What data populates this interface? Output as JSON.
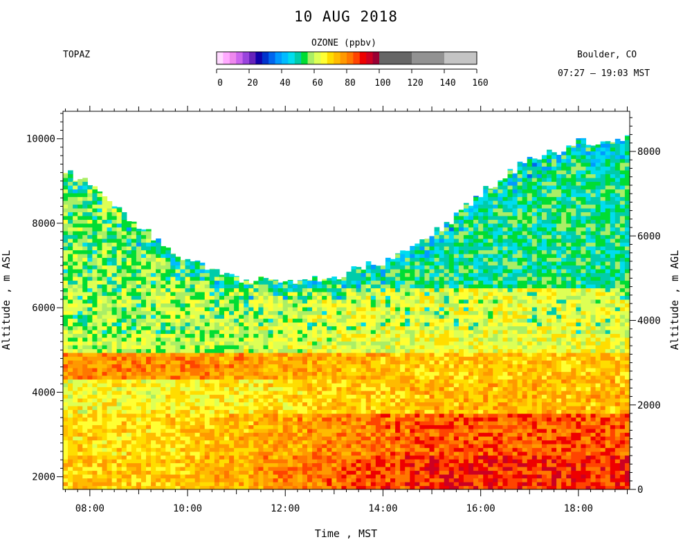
{
  "header": {
    "title": "10 AUG 2018",
    "site": "TOPAZ",
    "location": "Boulder, CO",
    "time_range": "07:27 – 19:03 MST"
  },
  "colorbar": {
    "label": "OZONE (ppbv)",
    "ticks": [
      0,
      20,
      40,
      60,
      80,
      100,
      120,
      140,
      160
    ],
    "bins": [
      {
        "lo": 0,
        "hi": 4,
        "color": "#ffd9ff"
      },
      {
        "lo": 4,
        "hi": 8,
        "color": "#ffaaff"
      },
      {
        "lo": 8,
        "hi": 12,
        "color": "#ee88ee"
      },
      {
        "lo": 12,
        "hi": 16,
        "color": "#cc66ee"
      },
      {
        "lo": 16,
        "hi": 20,
        "color": "#9944dd"
      },
      {
        "lo": 20,
        "hi": 24,
        "color": "#6622bb"
      },
      {
        "lo": 24,
        "hi": 28,
        "color": "#1100aa"
      },
      {
        "lo": 28,
        "hi": 32,
        "color": "#0033cc"
      },
      {
        "lo": 32,
        "hi": 36,
        "color": "#0066ee"
      },
      {
        "lo": 36,
        "hi": 40,
        "color": "#0099ff"
      },
      {
        "lo": 40,
        "hi": 44,
        "color": "#00bbff"
      },
      {
        "lo": 44,
        "hi": 48,
        "color": "#00ddee"
      },
      {
        "lo": 48,
        "hi": 52,
        "color": "#00ccaa"
      },
      {
        "lo": 52,
        "hi": 56,
        "color": "#00dd33"
      },
      {
        "lo": 56,
        "hi": 60,
        "color": "#aaee66"
      },
      {
        "lo": 60,
        "hi": 64,
        "color": "#ddff55"
      },
      {
        "lo": 64,
        "hi": 68,
        "color": "#ffff33"
      },
      {
        "lo": 68,
        "hi": 72,
        "color": "#ffdd00"
      },
      {
        "lo": 72,
        "hi": 76,
        "color": "#ffbb00"
      },
      {
        "lo": 76,
        "hi": 80,
        "color": "#ff9900"
      },
      {
        "lo": 80,
        "hi": 84,
        "color": "#ff7700"
      },
      {
        "lo": 84,
        "hi": 88,
        "color": "#ff4400"
      },
      {
        "lo": 88,
        "hi": 92,
        "color": "#ee0000"
      },
      {
        "lo": 92,
        "hi": 96,
        "color": "#cc0022"
      },
      {
        "lo": 96,
        "hi": 100,
        "color": "#990033"
      },
      {
        "lo": 100,
        "hi": 120,
        "color": "#666666"
      },
      {
        "lo": 120,
        "hi": 140,
        "color": "#929292"
      },
      {
        "lo": 140,
        "hi": 160,
        "color": "#c4c4c4"
      }
    ]
  },
  "chart_data": {
    "type": "heatmap",
    "title": "10 AUG 2018",
    "xlabel": "Time , MST",
    "ylabel_left": "Altitude , m ASL",
    "ylabel_right": "Altitude , m AGL",
    "x_tick_labels": [
      "08:00",
      "10:00",
      "12:00",
      "14:00",
      "16:00",
      "18:00"
    ],
    "x_tick_hours": [
      8,
      10,
      12,
      14,
      16,
      18
    ],
    "y_left_ticks": [
      2000,
      4000,
      6000,
      8000,
      10000
    ],
    "y_right_ticks": [
      0,
      2000,
      4000,
      6000,
      8000
    ],
    "xlim_hours": [
      7.45,
      19.05
    ],
    "ylim_m_asl": [
      1700,
      10650
    ],
    "surface_elevation_m_asl": 1700,
    "colorbar_ppbv": [
      0,
      160
    ],
    "value_unit": "ppbv",
    "series": [
      {
        "name": "ozone_profile",
        "time_hours": [
          7.45,
          8,
          9,
          10,
          11,
          12,
          13,
          14,
          15,
          16,
          17,
          18,
          18.7
        ],
        "top_altitude_m_asl": [
          9300,
          8900,
          7900,
          7100,
          6700,
          6600,
          6700,
          7100,
          7700,
          8700,
          9500,
          9900,
          10000
        ]
      }
    ],
    "layers": [
      {
        "from_m_asl": 1700,
        "to_m_asl": 2500,
        "morning_ppbv": 72,
        "afternoon_ppbv": 88
      },
      {
        "from_m_asl": 2500,
        "to_m_asl": 3500,
        "morning_ppbv": 70,
        "afternoon_ppbv": 84
      },
      {
        "from_m_asl": 3500,
        "to_m_asl": 4300,
        "morning_ppbv": 66,
        "afternoon_ppbv": 74
      },
      {
        "from_m_asl": 4300,
        "to_m_asl": 4900,
        "morning_ppbv": 80,
        "afternoon_ppbv": 72
      },
      {
        "from_m_asl": 4900,
        "to_m_asl": 6500,
        "morning_ppbv": 60,
        "afternoon_ppbv": 64
      },
      {
        "from_m_asl": 6500,
        "to_m_asl": 10000,
        "morning_ppbv": 58,
        "afternoon_ppbv": 52
      }
    ]
  }
}
